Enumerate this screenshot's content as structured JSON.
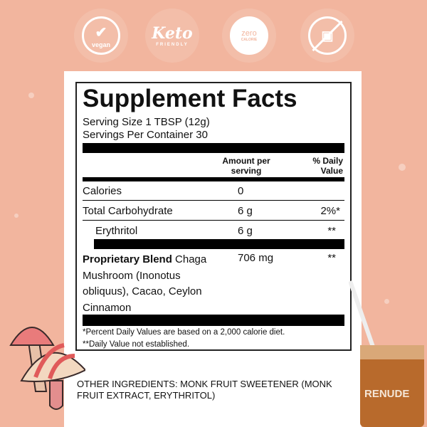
{
  "badges": [
    {
      "icon": "vegan-leaf-check-icon",
      "label": "vegan"
    },
    {
      "icon": "keto-icon",
      "label": "Keto",
      "sub": "FRIENDLY"
    },
    {
      "icon": "zero-calorie-gauge-icon",
      "label": "zero",
      "sub": "CALORIE"
    },
    {
      "icon": "no-sugar-icon",
      "label": ""
    }
  ],
  "facts": {
    "title": "Supplement Facts",
    "serving_size": "Serving Size 1 TBSP (12g)",
    "servings_per_container": "Servings Per Container 30",
    "col_amount": "Amount per serving",
    "col_dv": "% Daily Value",
    "rows": [
      {
        "name": "Calories",
        "amount": "0",
        "dv": ""
      },
      {
        "name": "Total Carbohydrate",
        "amount": "6 g",
        "dv": "2%*"
      },
      {
        "name": "Erythritol",
        "amount": "6 g",
        "dv": "**"
      }
    ],
    "blend_name": "Proprietary Blend",
    "blend_lines": [
      " Chaga",
      "Mushroom (Inonotus",
      "obliquus), Cacao, Ceylon",
      "Cinnamon"
    ],
    "blend_amount": "706 mg",
    "blend_dv": "**",
    "footnote1": "*Percent Daily Values are based on a 2,000 calorie diet.",
    "footnote2": "**Daily Value not established."
  },
  "other_ingredients": [
    "OTHER INGREDIENTS: MONK FRUIT SWEETENER (MONK",
    "FRUIT EXTRACT, ERYTHRITOL)"
  ],
  "brand": "RENUDE",
  "colors": {
    "background": "#f2b59e",
    "panel": "#ffffff",
    "text": "#111111"
  }
}
